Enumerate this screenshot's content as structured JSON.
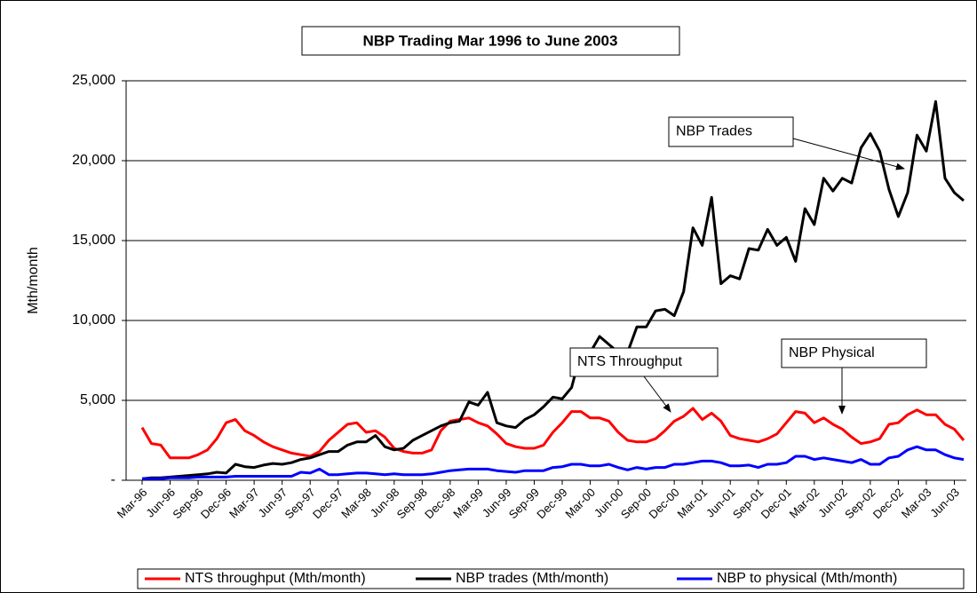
{
  "chart_data": {
    "type": "line",
    "title": "NBP Trading Mar 1996 to June 2003",
    "y_label": "Mth/month",
    "categories": [
      "Mar-96",
      null,
      null,
      "Jun-96",
      null,
      null,
      "Sep-96",
      null,
      null,
      "Dec-96",
      null,
      null,
      "Mar-97",
      null,
      null,
      "Jun-97",
      null,
      null,
      "Sep-97",
      null,
      null,
      "Dec-97",
      null,
      null,
      "Mar-98",
      null,
      null,
      "Jun-98",
      null,
      null,
      "Sep-98",
      null,
      null,
      "Dec-98",
      null,
      null,
      "Mar-99",
      null,
      null,
      "Jun-99",
      null,
      null,
      "Sep-99",
      null,
      null,
      "Dec-99",
      null,
      null,
      "Mar-00",
      null,
      null,
      "Jun-00",
      null,
      null,
      "Sep-00",
      null,
      null,
      "Dec-00",
      null,
      null,
      "Mar-01",
      null,
      null,
      "Jun-01",
      null,
      null,
      "Sep-01",
      null,
      null,
      "Dec-01",
      null,
      null,
      "Mar-02",
      null,
      null,
      "Jun-02",
      null,
      null,
      "Sep-02",
      null,
      null,
      "Dec-02",
      null,
      null,
      "Mar-03",
      null,
      null,
      "Jun-03",
      null
    ],
    "series": [
      {
        "name": "NTS throughput (Mth/month)",
        "color": "#ff0000",
        "values": [
          3300,
          2300,
          2200,
          1400,
          1400,
          1400,
          1600,
          1900,
          2600,
          3600,
          3800,
          3100,
          2800,
          2400,
          2100,
          1900,
          1700,
          1600,
          1500,
          1800,
          2500,
          3000,
          3500,
          3600,
          3000,
          3100,
          2700,
          2000,
          1800,
          1700,
          1700,
          1900,
          3100,
          3700,
          3800,
          3900,
          3600,
          3400,
          2900,
          2300,
          2100,
          2000,
          2000,
          2200,
          3000,
          3600,
          4300,
          4300,
          3900,
          3900,
          3700,
          3000,
          2500,
          2400,
          2400,
          2600,
          3100,
          3700,
          4000,
          4500,
          3800,
          4200,
          3700,
          2800,
          2600,
          2500,
          2400,
          2600,
          2900,
          3600,
          4300,
          4200,
          3600,
          3900,
          3500,
          3200,
          2700,
          2300,
          2400,
          2600,
          3500,
          3600,
          4100,
          4400,
          4100,
          4100,
          3500,
          3200,
          2500
        ]
      },
      {
        "name": "NBP trades (Mth/month)",
        "color": "#000000",
        "values": [
          100,
          150,
          150,
          200,
          250,
          300,
          350,
          400,
          500,
          450,
          1000,
          850,
          800,
          950,
          1050,
          1000,
          1100,
          1300,
          1400,
          1600,
          1800,
          1800,
          2200,
          2400,
          2400,
          2800,
          2100,
          1900,
          2000,
          2500,
          2800,
          3100,
          3400,
          3600,
          3700,
          4900,
          4700,
          5500,
          3600,
          3400,
          3300,
          3800,
          4100,
          4600,
          5200,
          5100,
          5800,
          8000,
          8000,
          9000,
          8500,
          8000,
          8000,
          9600,
          9600,
          10600,
          10700,
          10300,
          11800,
          15800,
          14700,
          17700,
          12300,
          12800,
          12600,
          14500,
          14400,
          15700,
          14700,
          15200,
          13700,
          17000,
          16000,
          18900,
          18100,
          18900,
          18600,
          20800,
          21700,
          20600,
          18200,
          16500,
          18000,
          21600,
          20600,
          23700,
          18900,
          18000,
          17500
        ]
      },
      {
        "name": "NBP to physical (Mth/month)",
        "color": "#0000ff",
        "values": [
          100,
          100,
          100,
          150,
          150,
          150,
          200,
          200,
          200,
          200,
          250,
          250,
          250,
          250,
          250,
          250,
          250,
          500,
          450,
          700,
          350,
          350,
          400,
          450,
          450,
          400,
          350,
          400,
          350,
          350,
          350,
          400,
          500,
          600,
          650,
          700,
          700,
          700,
          600,
          550,
          500,
          600,
          600,
          600,
          800,
          850,
          1000,
          1000,
          900,
          900,
          1000,
          800,
          650,
          800,
          700,
          800,
          800,
          1000,
          1000,
          1100,
          1200,
          1200,
          1100,
          900,
          900,
          950,
          800,
          1000,
          1000,
          1100,
          1500,
          1500,
          1300,
          1400,
          1300,
          1200,
          1100,
          1300,
          1000,
          1000,
          1400,
          1500,
          1900,
          2100,
          1900,
          1900,
          1600,
          1400,
          1300
        ]
      }
    ],
    "ylim": [
      0,
      25000
    ],
    "yticks": [
      {
        "value": 0,
        "label": "-"
      },
      {
        "value": 5000,
        "label": "5,000"
      },
      {
        "value": 10000,
        "label": "10,000"
      },
      {
        "value": 15000,
        "label": "15,000"
      },
      {
        "value": 20000,
        "label": "20,000"
      },
      {
        "value": 25000,
        "label": "25,000"
      }
    ],
    "grid": true,
    "legend": "bottom",
    "annotations": [
      {
        "text": "NBP Trades"
      },
      {
        "text": "NTS Throughput"
      },
      {
        "text": "NBP Physical"
      }
    ]
  }
}
